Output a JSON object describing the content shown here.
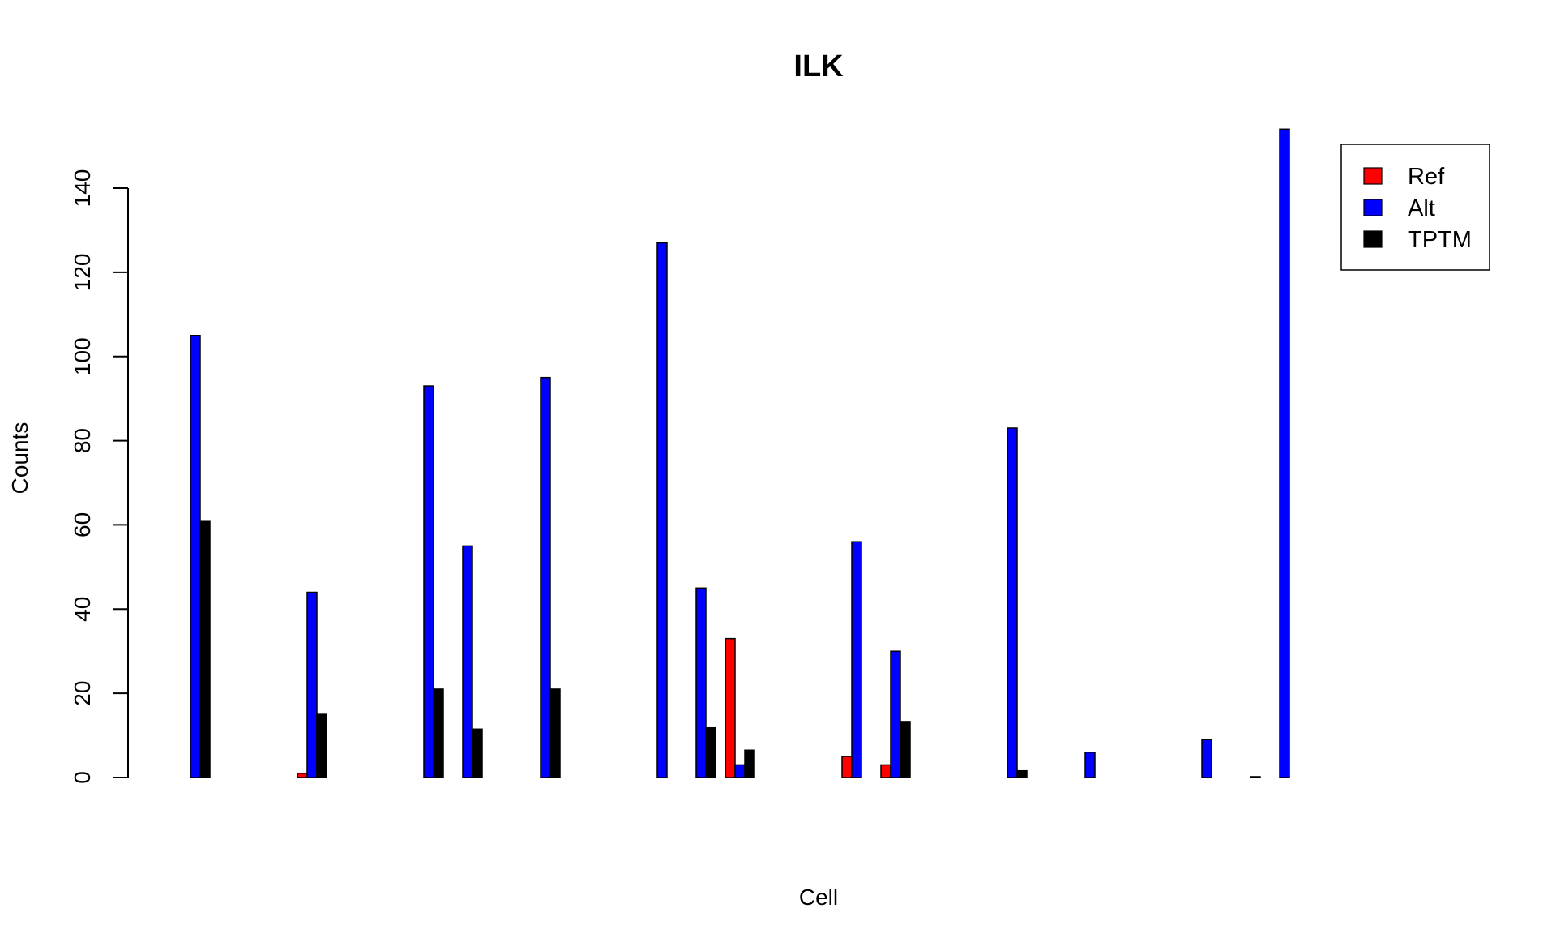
{
  "chart_data": {
    "type": "bar",
    "title": "ILK",
    "xlabel": "Cell",
    "ylabel": "Counts",
    "ylim": [
      0,
      155
    ],
    "yticks": [
      0,
      20,
      40,
      60,
      80,
      100,
      120,
      140
    ],
    "grid": false,
    "legend_position": "top-right",
    "categories": [
      "",
      "",
      "",
      "",
      "",
      "",
      "",
      "",
      "",
      "",
      "",
      "",
      "",
      "",
      "",
      "",
      "",
      "",
      "",
      "",
      "",
      "",
      "",
      "",
      "",
      "",
      "",
      "",
      "",
      "",
      "",
      ""
    ],
    "series": [
      {
        "name": "Ref",
        "color": "#ff0000",
        "values": [
          0,
          0,
          0,
          1,
          0,
          0,
          0,
          0,
          0,
          0,
          0,
          0,
          0,
          0,
          0,
          0,
          0,
          33,
          0,
          0,
          5,
          3,
          0,
          0,
          0,
          0,
          0,
          0,
          0,
          0,
          0,
          0
        ]
      },
      {
        "name": "Alt",
        "color": "#0000ff",
        "values": [
          0,
          105,
          0,
          44,
          0,
          0,
          93,
          55,
          0,
          95,
          0,
          0,
          127,
          45,
          3,
          0,
          0,
          0,
          56,
          30,
          0,
          0,
          83,
          0,
          6,
          0,
          0,
          9,
          0,
          154,
          0,
          0
        ]
      },
      {
        "name": "TPTM",
        "color": "#000000",
        "values": [
          0,
          61,
          0,
          15,
          0,
          0,
          21,
          11.5,
          0,
          21,
          0,
          0,
          0,
          11.8,
          6.5,
          0,
          0,
          0,
          0,
          13.3,
          0,
          0,
          1.6,
          0,
          0,
          0,
          0,
          0,
          0.2,
          0,
          0,
          0
        ]
      }
    ],
    "groups": [
      {
        "ref": 0,
        "alt": 105,
        "tptm": 61
      },
      {
        "ref": 0,
        "alt": 0,
        "tptm": 0
      },
      {
        "ref": 1,
        "alt": 44,
        "tptm": 15
      },
      {
        "ref": 0,
        "alt": 93,
        "tptm": 21
      },
      {
        "ref": 0,
        "alt": 55,
        "tptm": 11.5
      },
      {
        "ref": 0,
        "alt": 0,
        "tptm": 0
      },
      {
        "ref": 0,
        "alt": 95,
        "tptm": 21
      },
      {
        "ref": 0,
        "alt": 127,
        "tptm": 0
      },
      {
        "ref": 0,
        "alt": 45,
        "tptm": 11.8
      },
      {
        "ref": 33,
        "alt": 3,
        "tptm": 6.5
      },
      {
        "ref": 5,
        "alt": 56,
        "tptm": 0
      },
      {
        "ref": 3,
        "alt": 30,
        "tptm": 13.3
      },
      {
        "ref": 0,
        "alt": 83,
        "tptm": 1.6
      },
      {
        "ref": 0,
        "alt": 6,
        "tptm": 0
      },
      {
        "ref": 0,
        "alt": 9,
        "tptm": 0
      },
      {
        "ref": 0,
        "alt": 0,
        "tptm": 0.2
      },
      {
        "ref": 0,
        "alt": 154,
        "tptm": 0
      }
    ]
  }
}
